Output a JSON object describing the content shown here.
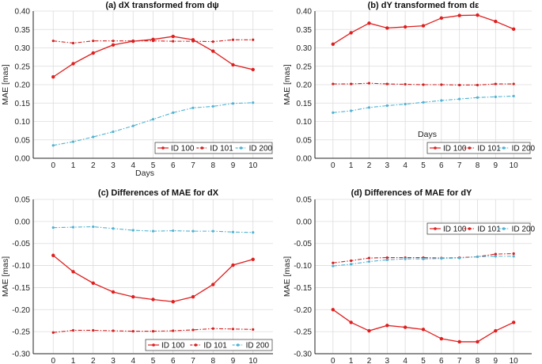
{
  "colors": {
    "id100": "#e01e1e",
    "id101": "#d42020",
    "id200": "#4fb3d3",
    "grid": "#dcdcdc",
    "axis": "#222222"
  },
  "chart_data": [
    {
      "type": "line",
      "title": "(a) dX transformed from dψ",
      "xlabel": "Days",
      "ylabel": "MAE [mas]",
      "x": [
        0,
        1,
        2,
        3,
        4,
        5,
        6,
        7,
        8,
        9,
        10
      ],
      "xticks": [
        "0",
        "1",
        "2",
        "3",
        "4",
        "5",
        "6",
        "7",
        "8",
        "9",
        "10"
      ],
      "ylim": [
        0,
        0.4
      ],
      "yticks": [
        "0.00",
        "0.05",
        "0.10",
        "0.15",
        "0.20",
        "0.25",
        "0.30",
        "0.35",
        "0.40"
      ],
      "grid": true,
      "legend": "bottom-right",
      "series": [
        {
          "name": "ID 100",
          "style": "solid",
          "color": "#e01e1e",
          "values": [
            0.221,
            0.257,
            0.286,
            0.308,
            0.318,
            0.323,
            0.331,
            0.322,
            0.291,
            0.254,
            0.241
          ]
        },
        {
          "name": "ID 101",
          "style": "dashdot",
          "color": "#d42020",
          "values": [
            0.319,
            0.313,
            0.319,
            0.319,
            0.319,
            0.319,
            0.318,
            0.318,
            0.317,
            0.322,
            0.322
          ]
        },
        {
          "name": "ID 200",
          "style": "dashdot",
          "color": "#4fb3d3",
          "values": [
            0.035,
            0.045,
            0.058,
            0.072,
            0.088,
            0.106,
            0.124,
            0.137,
            0.141,
            0.149,
            0.151
          ]
        }
      ]
    },
    {
      "type": "line",
      "title": "(b) dY transformed from dε",
      "xlabel": "Days",
      "ylabel": "MAE [mas]",
      "x": [
        0,
        1,
        2,
        3,
        4,
        5,
        6,
        7,
        8,
        9,
        10
      ],
      "xticks": [
        "0",
        "1",
        "2",
        "3",
        "4",
        "5",
        "6",
        "7",
        "8",
        "9",
        "10"
      ],
      "ylim": [
        0,
        0.4
      ],
      "yticks": [
        "0.00",
        "0.05",
        "0.10",
        "0.15",
        "0.20",
        "0.25",
        "0.30",
        "0.35",
        "0.40"
      ],
      "grid": true,
      "legend": "bottom-right",
      "series": [
        {
          "name": "ID 100",
          "style": "solid",
          "color": "#e01e1e",
          "values": [
            0.31,
            0.341,
            0.367,
            0.354,
            0.357,
            0.36,
            0.381,
            0.388,
            0.389,
            0.372,
            0.351
          ]
        },
        {
          "name": "ID 101",
          "style": "dashdot",
          "color": "#d42020",
          "values": [
            0.202,
            0.202,
            0.204,
            0.202,
            0.201,
            0.2,
            0.2,
            0.199,
            0.199,
            0.202,
            0.202
          ]
        },
        {
          "name": "ID 200",
          "style": "dashdot",
          "color": "#4fb3d3",
          "values": [
            0.124,
            0.129,
            0.138,
            0.143,
            0.147,
            0.152,
            0.157,
            0.161,
            0.165,
            0.167,
            0.169
          ]
        }
      ]
    },
    {
      "type": "line",
      "title": "(c) Differences of MAE for dX",
      "xlabel": "",
      "ylabel": "MAE [mas]",
      "x": [
        0,
        1,
        2,
        3,
        4,
        5,
        6,
        7,
        8,
        9,
        10
      ],
      "xticks": [
        "0",
        "1",
        "2",
        "3",
        "4",
        "5",
        "6",
        "7",
        "8",
        "9",
        "10"
      ],
      "ylim": [
        -0.3,
        0.05
      ],
      "yticks": [
        "-0.30",
        "-0.25",
        "-0.20",
        "-0.15",
        "-0.10",
        "-0.05",
        "0.00",
        "0.05"
      ],
      "grid": true,
      "legend": "bottom-right",
      "series": [
        {
          "name": "ID 100",
          "style": "solid",
          "color": "#e01e1e",
          "values": [
            -0.077,
            -0.114,
            -0.14,
            -0.16,
            -0.171,
            -0.177,
            -0.182,
            -0.171,
            -0.143,
            -0.099,
            -0.086
          ]
        },
        {
          "name": "ID 101",
          "style": "dashdot",
          "color": "#d42020",
          "values": [
            -0.252,
            -0.247,
            -0.247,
            -0.248,
            -0.249,
            -0.249,
            -0.248,
            -0.246,
            -0.243,
            -0.244,
            -0.245
          ]
        },
        {
          "name": "ID 200",
          "style": "dashdot",
          "color": "#4fb3d3",
          "values": [
            -0.014,
            -0.013,
            -0.012,
            -0.016,
            -0.02,
            -0.022,
            -0.021,
            -0.022,
            -0.022,
            -0.024,
            -0.025
          ]
        }
      ]
    },
    {
      "type": "line",
      "title": "(d) Differences of MAE for dY",
      "xlabel": "",
      "ylabel": "MAE [mas]",
      "x": [
        0,
        1,
        2,
        3,
        4,
        5,
        6,
        7,
        8,
        9,
        10
      ],
      "xticks": [
        "0",
        "1",
        "2",
        "3",
        "4",
        "5",
        "6",
        "7",
        "8",
        "9",
        "10"
      ],
      "ylim": [
        -0.3,
        0.05
      ],
      "yticks": [
        "-0.30",
        "-0.25",
        "-0.20",
        "-0.15",
        "-0.10",
        "-0.05",
        "0.00",
        "0.05"
      ],
      "grid": true,
      "legend": "top-right",
      "series": [
        {
          "name": "ID 100",
          "style": "solid",
          "color": "#e01e1e",
          "values": [
            -0.2,
            -0.229,
            -0.248,
            -0.236,
            -0.24,
            -0.245,
            -0.266,
            -0.273,
            -0.273,
            -0.248,
            -0.229
          ]
        },
        {
          "name": "ID 101",
          "style": "dashdot",
          "color": "#d42020",
          "values": [
            -0.094,
            -0.089,
            -0.083,
            -0.082,
            -0.082,
            -0.082,
            -0.083,
            -0.082,
            -0.08,
            -0.074,
            -0.073
          ]
        },
        {
          "name": "ID 200",
          "style": "dashdot",
          "color": "#4fb3d3",
          "values": [
            -0.101,
            -0.097,
            -0.091,
            -0.087,
            -0.085,
            -0.085,
            -0.084,
            -0.083,
            -0.08,
            -0.079,
            -0.079
          ]
        }
      ]
    }
  ]
}
